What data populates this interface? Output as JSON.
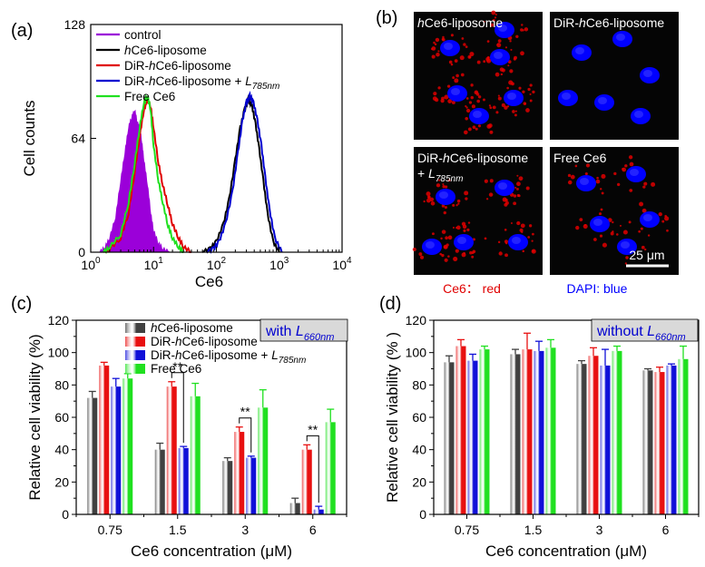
{
  "chart_data": [
    {
      "panel": "(a)",
      "type": "line",
      "xlabel": "Ce6",
      "ylabel": "Cell counts",
      "x_scale": "log",
      "xlim": [
        1,
        10000
      ],
      "ylim": [
        0,
        128
      ],
      "x_ticks": [
        {
          "value": 1,
          "base": "10",
          "exp": "0"
        },
        {
          "value": 10,
          "base": "10",
          "exp": "1"
        },
        {
          "value": 100,
          "base": "10",
          "exp": "2"
        },
        {
          "value": 1000,
          "base": "10",
          "exp": "3"
        },
        {
          "value": 10000,
          "base": "10",
          "exp": "4"
        }
      ],
      "y_ticks": [
        "0",
        "64",
        "128"
      ],
      "legend_position": "top-left",
      "series": [
        {
          "name": "control",
          "color": "#9b00d9",
          "filled": true,
          "x": [
            1.4,
            1.7,
            2,
            2.5,
            3,
            3.5,
            4,
            4.5,
            5,
            5.5,
            6,
            6.5,
            7,
            8,
            9,
            10,
            12,
            14,
            18
          ],
          "y": [
            0,
            3,
            8,
            20,
            40,
            56,
            70,
            76,
            80,
            73,
            70,
            62,
            52,
            38,
            22,
            12,
            5,
            2,
            0
          ]
        },
        {
          "name": "hCe6-liposome",
          "color": "#000000",
          "x": [
            60,
            80,
            100,
            130,
            160,
            200,
            240,
            280,
            320,
            370,
            420,
            480,
            560,
            650,
            800,
            1000
          ],
          "y": [
            0,
            2,
            6,
            16,
            30,
            52,
            70,
            80,
            86,
            82,
            72,
            58,
            40,
            22,
            6,
            0
          ]
        },
        {
          "name": "DiR-hCe6-liposome",
          "color": "#e00000",
          "x": [
            1.6,
            2,
            3,
            4,
            5,
            6,
            7,
            8,
            9,
            10,
            12,
            14,
            17,
            20,
            25,
            30,
            40
          ],
          "y": [
            0,
            2,
            8,
            22,
            45,
            65,
            80,
            86,
            82,
            70,
            50,
            38,
            26,
            16,
            8,
            3,
            0
          ]
        },
        {
          "name": "DiR-hCe6-liposome + L785nm",
          "color": "#0000d0",
          "x": [
            70,
            90,
            110,
            140,
            180,
            220,
            260,
            300,
            340,
            390,
            450,
            520,
            600,
            700,
            850,
            1100
          ],
          "y": [
            0,
            2,
            6,
            16,
            34,
            56,
            74,
            84,
            88,
            84,
            74,
            60,
            42,
            24,
            8,
            0
          ]
        },
        {
          "name": "Free Ce6",
          "color": "#20e020",
          "x": [
            1.6,
            2,
            3,
            4,
            5,
            6,
            7,
            8,
            9,
            10,
            12,
            14,
            17,
            20,
            25,
            30
          ],
          "y": [
            0,
            3,
            10,
            28,
            50,
            70,
            84,
            88,
            80,
            60,
            40,
            28,
            15,
            8,
            3,
            0
          ]
        }
      ]
    },
    {
      "panel": "(c)",
      "type": "bar",
      "xlabel": "Ce6 concentration (μM)",
      "ylabel": "Relative cell viability (%)",
      "ylim": [
        0,
        120
      ],
      "y_ticks": [
        "0",
        "20",
        "40",
        "60",
        "80",
        "100",
        "120"
      ],
      "categories": [
        "0.75",
        "1.5",
        "3",
        "6"
      ],
      "annotation": {
        "text": "with ",
        "sub_base": "L",
        "sub": "660nm"
      },
      "significance": [
        {
          "category": "1.5",
          "from_series": 1,
          "to_series": 2,
          "label": "**"
        },
        {
          "category": "3",
          "from_series": 1,
          "to_series": 2,
          "label": "**"
        },
        {
          "category": "6",
          "from_series": 1,
          "to_series": 2,
          "label": "**"
        }
      ],
      "series": [
        {
          "name": "hCe6-liposome",
          "color": "#404040",
          "values": [
            72,
            40,
            33,
            7
          ],
          "errors": [
            4,
            4,
            2,
            3
          ]
        },
        {
          "name": "DiR-hCe6-liposome",
          "color": "#e81010",
          "values": [
            92,
            79,
            51,
            40
          ],
          "errors": [
            2,
            3,
            3,
            3
          ]
        },
        {
          "name": "DiR-hCe6-liposome + L785nm",
          "color": "#1010d8",
          "values": [
            79,
            41,
            35,
            3
          ],
          "errors": [
            5,
            1,
            1,
            2
          ]
        },
        {
          "name": "Free Ce6",
          "color": "#20e020",
          "values": [
            84,
            73,
            66,
            57
          ],
          "errors": [
            3,
            8,
            11,
            8
          ]
        }
      ]
    },
    {
      "panel": "(d)",
      "type": "bar",
      "xlabel": "Ce6 concentration (μM)",
      "ylabel": "Relative cell viability (% )",
      "ylim": [
        0,
        120
      ],
      "y_ticks": [
        "0",
        "20",
        "40",
        "60",
        "80",
        "100",
        "120"
      ],
      "categories": [
        "0.75",
        "1.5",
        "3",
        "6"
      ],
      "annotation": {
        "text": "without ",
        "sub_base": "L",
        "sub": "660nm"
      },
      "series": [
        {
          "name": "hCe6-liposome",
          "color": "#404040",
          "values": [
            94,
            99,
            93,
            89
          ],
          "errors": [
            4,
            3,
            2,
            1
          ]
        },
        {
          "name": "DiR-hCe6-liposome",
          "color": "#e81010",
          "values": [
            104,
            102,
            98,
            88
          ],
          "errors": [
            4,
            10,
            5,
            3
          ]
        },
        {
          "name": "DiR-hCe6-liposome + L785nm",
          "color": "#1010d8",
          "values": [
            95,
            101,
            92,
            92
          ],
          "errors": [
            4,
            6,
            10,
            1
          ]
        },
        {
          "name": "Free Ce6",
          "color": "#20e020",
          "values": [
            102,
            103,
            101,
            96
          ],
          "errors": [
            2,
            5,
            3,
            8
          ]
        }
      ]
    }
  ],
  "panel_b": {
    "label": "(b)",
    "tiles": [
      {
        "name": "hCe6-liposome",
        "parts": [
          {
            "t": "h",
            "i": true
          },
          {
            "t": "Ce6-liposome"
          }
        ]
      },
      {
        "name": "DiR-hCe6-liposome",
        "parts": [
          {
            "t": "DiR-"
          },
          {
            "t": "h",
            "i": true
          },
          {
            "t": "Ce6-liposome"
          }
        ]
      },
      {
        "name": "DiR-hCe6-liposome + L785nm",
        "parts": [
          {
            "t": "DiR-"
          },
          {
            "t": "h",
            "i": true
          },
          {
            "t": "Ce6-liposome"
          }
        ],
        "line2": {
          "plus": "+ ",
          "base": "L",
          "sub": "785nm"
        }
      },
      {
        "name": "Free Ce6",
        "parts": [
          {
            "t": "Free Ce6"
          }
        ]
      }
    ],
    "scalebar": "25 μm",
    "caption_ce6": "Ce6： red",
    "caption_dapi": "DAPI: blue",
    "ce6_color": "#e00000",
    "dapi_color": "#0000ff"
  }
}
